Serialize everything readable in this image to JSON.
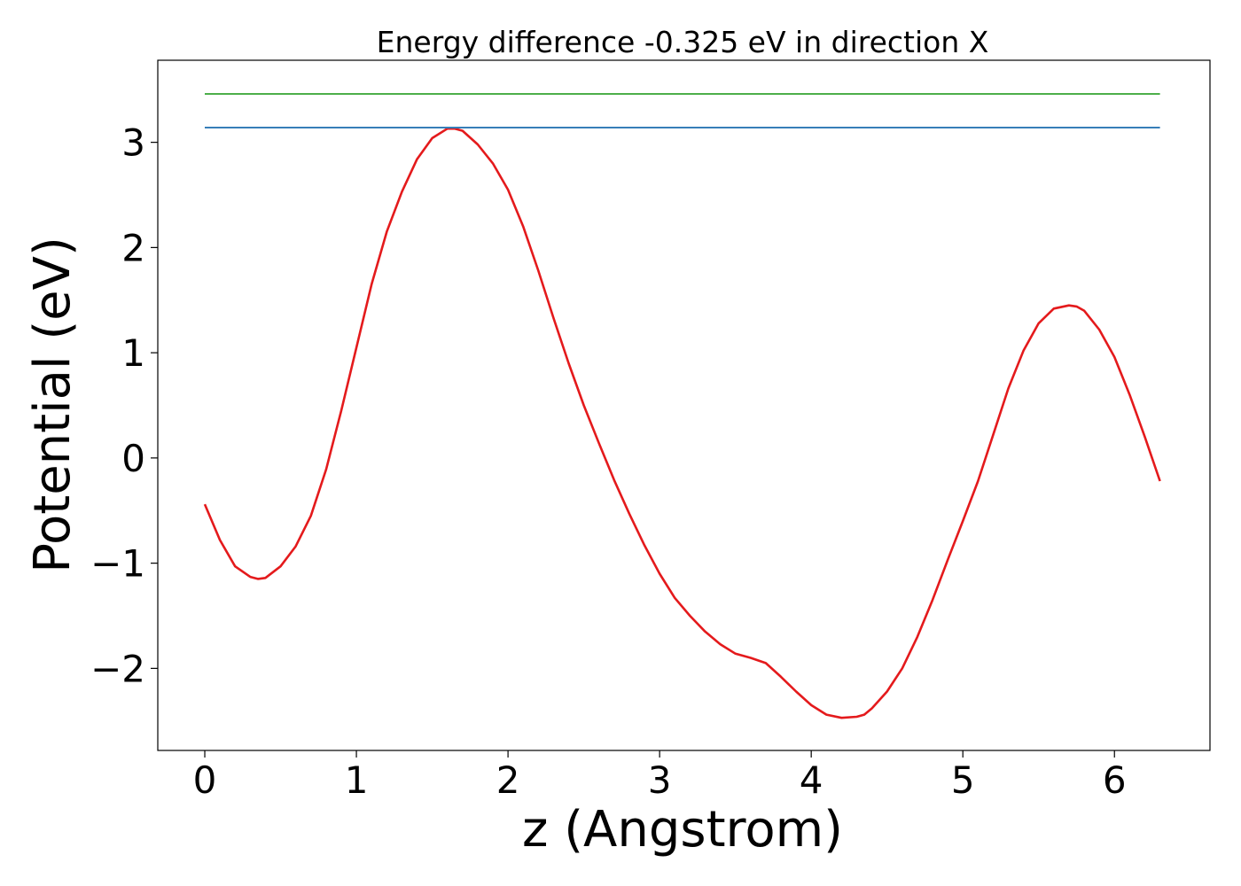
{
  "chart_data": {
    "type": "line",
    "title": "Energy difference -0.325 eV in direction X",
    "xlabel": "z (Angstrom)",
    "ylabel": "Potential (eV)",
    "xlim": [
      -0.31,
      6.63
    ],
    "ylim": [
      -2.78,
      3.78
    ],
    "grid": false,
    "legend": "none",
    "x_ticks": [
      {
        "value": 0,
        "label": "0"
      },
      {
        "value": 1,
        "label": "1"
      },
      {
        "value": 2,
        "label": "2"
      },
      {
        "value": 3,
        "label": "3"
      },
      {
        "value": 4,
        "label": "4"
      },
      {
        "value": 5,
        "label": "5"
      },
      {
        "value": 6,
        "label": "6"
      }
    ],
    "y_ticks": [
      {
        "value": -2,
        "label": "−2"
      },
      {
        "value": -1,
        "label": "−1"
      },
      {
        "value": 0,
        "label": "0"
      },
      {
        "value": 1,
        "label": "1"
      },
      {
        "value": 2,
        "label": "2"
      },
      {
        "value": 3,
        "label": "3"
      }
    ],
    "series": [
      {
        "color": "#e41a1c",
        "x": [
          0.0,
          0.1,
          0.2,
          0.3,
          0.35,
          0.4,
          0.5,
          0.6,
          0.7,
          0.8,
          0.9,
          1.0,
          1.1,
          1.2,
          1.3,
          1.4,
          1.5,
          1.6,
          1.65,
          1.7,
          1.8,
          1.9,
          2.0,
          2.1,
          2.2,
          2.3,
          2.4,
          2.5,
          2.6,
          2.7,
          2.8,
          2.9,
          3.0,
          3.1,
          3.2,
          3.3,
          3.4,
          3.5,
          3.6,
          3.7,
          3.8,
          3.9,
          4.0,
          4.1,
          4.2,
          4.3,
          4.35,
          4.4,
          4.5,
          4.6,
          4.7,
          4.8,
          4.9,
          5.0,
          5.1,
          5.2,
          5.3,
          5.4,
          5.5,
          5.6,
          5.7,
          5.75,
          5.8,
          5.9,
          6.0,
          6.1,
          6.2,
          6.3
        ],
        "y": [
          -0.44,
          -0.78,
          -1.03,
          -1.13,
          -1.15,
          -1.14,
          -1.03,
          -0.84,
          -0.55,
          -0.11,
          0.45,
          1.05,
          1.65,
          2.15,
          2.53,
          2.84,
          3.04,
          3.13,
          3.13,
          3.11,
          2.98,
          2.8,
          2.55,
          2.2,
          1.78,
          1.33,
          0.9,
          0.5,
          0.14,
          -0.21,
          -0.53,
          -0.83,
          -1.1,
          -1.33,
          -1.5,
          -1.65,
          -1.77,
          -1.86,
          -1.9,
          -1.95,
          -2.08,
          -2.22,
          -2.35,
          -2.44,
          -2.47,
          -2.46,
          -2.44,
          -2.38,
          -2.22,
          -2.0,
          -1.7,
          -1.35,
          -0.97,
          -0.6,
          -0.22,
          0.22,
          0.66,
          1.02,
          1.28,
          1.42,
          1.45,
          1.44,
          1.4,
          1.22,
          0.96,
          0.6,
          0.2,
          -0.22
        ]
      },
      {
        "color": "#377eb8",
        "x": [
          0.0,
          6.3
        ],
        "y": [
          3.14,
          3.14
        ]
      },
      {
        "color": "#4daf4a",
        "x": [
          0.0,
          6.3
        ],
        "y": [
          3.46,
          3.46
        ]
      }
    ]
  }
}
